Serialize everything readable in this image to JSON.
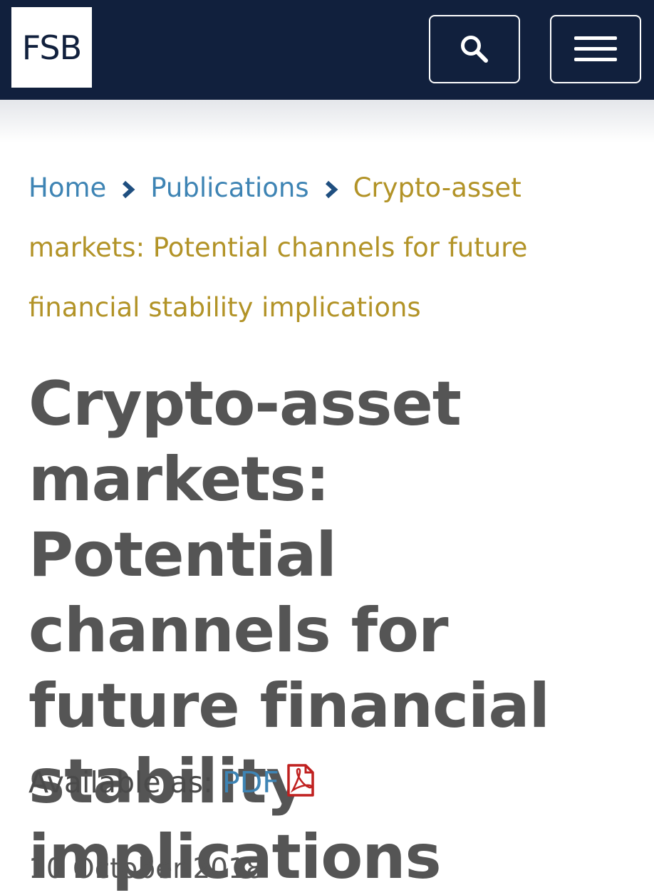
{
  "header": {
    "logo_text": "FSB",
    "background_color": "#11203d",
    "search_icon": "search-icon",
    "menu_icon": "hamburger-menu-icon"
  },
  "breadcrumb": {
    "home": "Home",
    "publications": "Publications",
    "current": "Crypto-asset markets: Potential channels for future financial stability implications",
    "link_color": "#3e84b4",
    "current_color": "#b29327"
  },
  "page": {
    "title": "Crypto-asset markets: Potential channels for future financial stability implications",
    "available_label": "Available as:",
    "pdf_label": "PDF",
    "pdf_icon": "pdf-file-icon",
    "date": "10 October 2018"
  }
}
